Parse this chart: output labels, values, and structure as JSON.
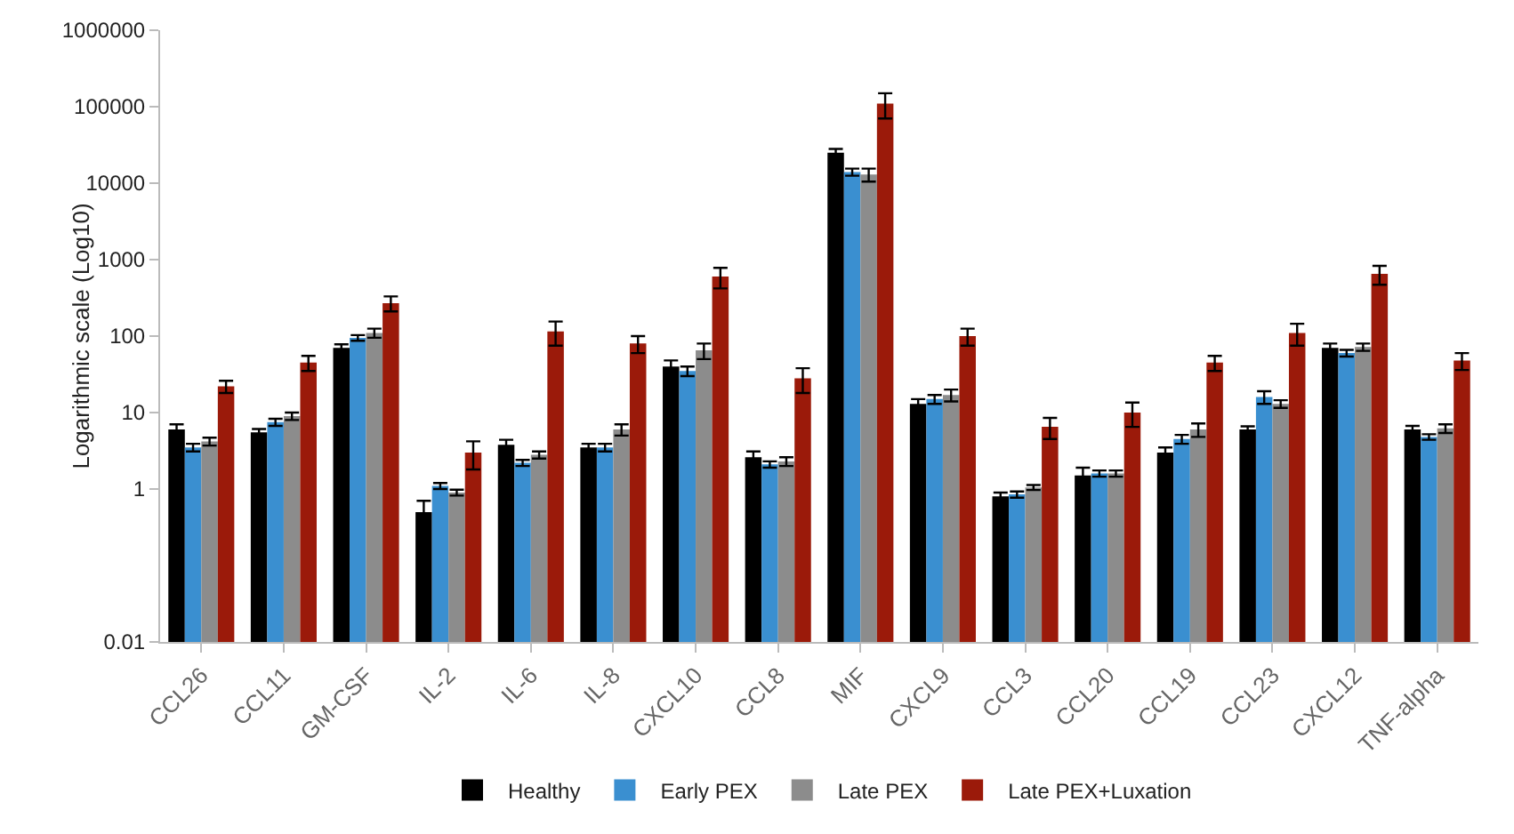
{
  "chart_data": {
    "type": "bar",
    "ylabel": "Logarithmic scale (Log10)",
    "log": true,
    "grid": false,
    "legend": "bottom",
    "categories": [
      "CCL26",
      "CCL11",
      "GM-CSF",
      "IL-2",
      "IL-6",
      "IL-8",
      "CXCL10",
      "CCL8",
      "MIF",
      "CXCL9",
      "CCL3",
      "CCL20",
      "CCL19",
      "CCL23",
      "CXCL12",
      "TNF-alpha"
    ],
    "ylim": [
      0.01,
      1000000
    ],
    "yticks": [
      0.01,
      1,
      10,
      100,
      1000,
      10000,
      100000,
      1000000
    ],
    "series": [
      {
        "name": "Healthy",
        "color": "#000000",
        "values": [
          6,
          5.5,
          70,
          0.5,
          3.8,
          3.5,
          40,
          2.6,
          25000,
          13,
          0.8,
          1.5,
          3,
          6,
          70,
          6
        ],
        "errors": [
          1,
          0.6,
          8,
          0.2,
          0.6,
          0.4,
          8,
          0.5,
          3000,
          2,
          0.1,
          0.4,
          0.5,
          0.6,
          10,
          0.7
        ]
      },
      {
        "name": "Early PEX",
        "color": "#3a8fd0",
        "values": [
          3.5,
          7.5,
          95,
          1.1,
          2.2,
          3.5,
          35,
          2.1,
          14000,
          15,
          0.85,
          1.6,
          4.5,
          16,
          60,
          4.8
        ],
        "errors": [
          0.4,
          0.8,
          8,
          0.1,
          0.2,
          0.4,
          5,
          0.2,
          1500,
          2,
          0.08,
          0.15,
          0.6,
          3,
          6,
          0.4
        ]
      },
      {
        "name": "Late PEX",
        "color": "#8c8c8c",
        "values": [
          4.2,
          9,
          110,
          0.9,
          2.8,
          6,
          65,
          2.3,
          13000,
          17,
          1.05,
          1.6,
          6,
          13,
          72,
          6.2
        ],
        "errors": [
          0.5,
          1,
          15,
          0.08,
          0.3,
          1,
          15,
          0.3,
          2500,
          3,
          0.08,
          0.15,
          1.2,
          1.5,
          8,
          0.8
        ]
      },
      {
        "name": "Late PEX+Luxation",
        "color": "#9b1a0a",
        "values": [
          22,
          45,
          270,
          3,
          115,
          80,
          600,
          28,
          110000,
          100,
          6.5,
          10,
          45,
          110,
          650,
          48
        ],
        "errors": [
          4,
          10,
          60,
          1.2,
          40,
          20,
          180,
          10,
          40000,
          25,
          2,
          3.5,
          10,
          35,
          180,
          12
        ]
      }
    ]
  }
}
